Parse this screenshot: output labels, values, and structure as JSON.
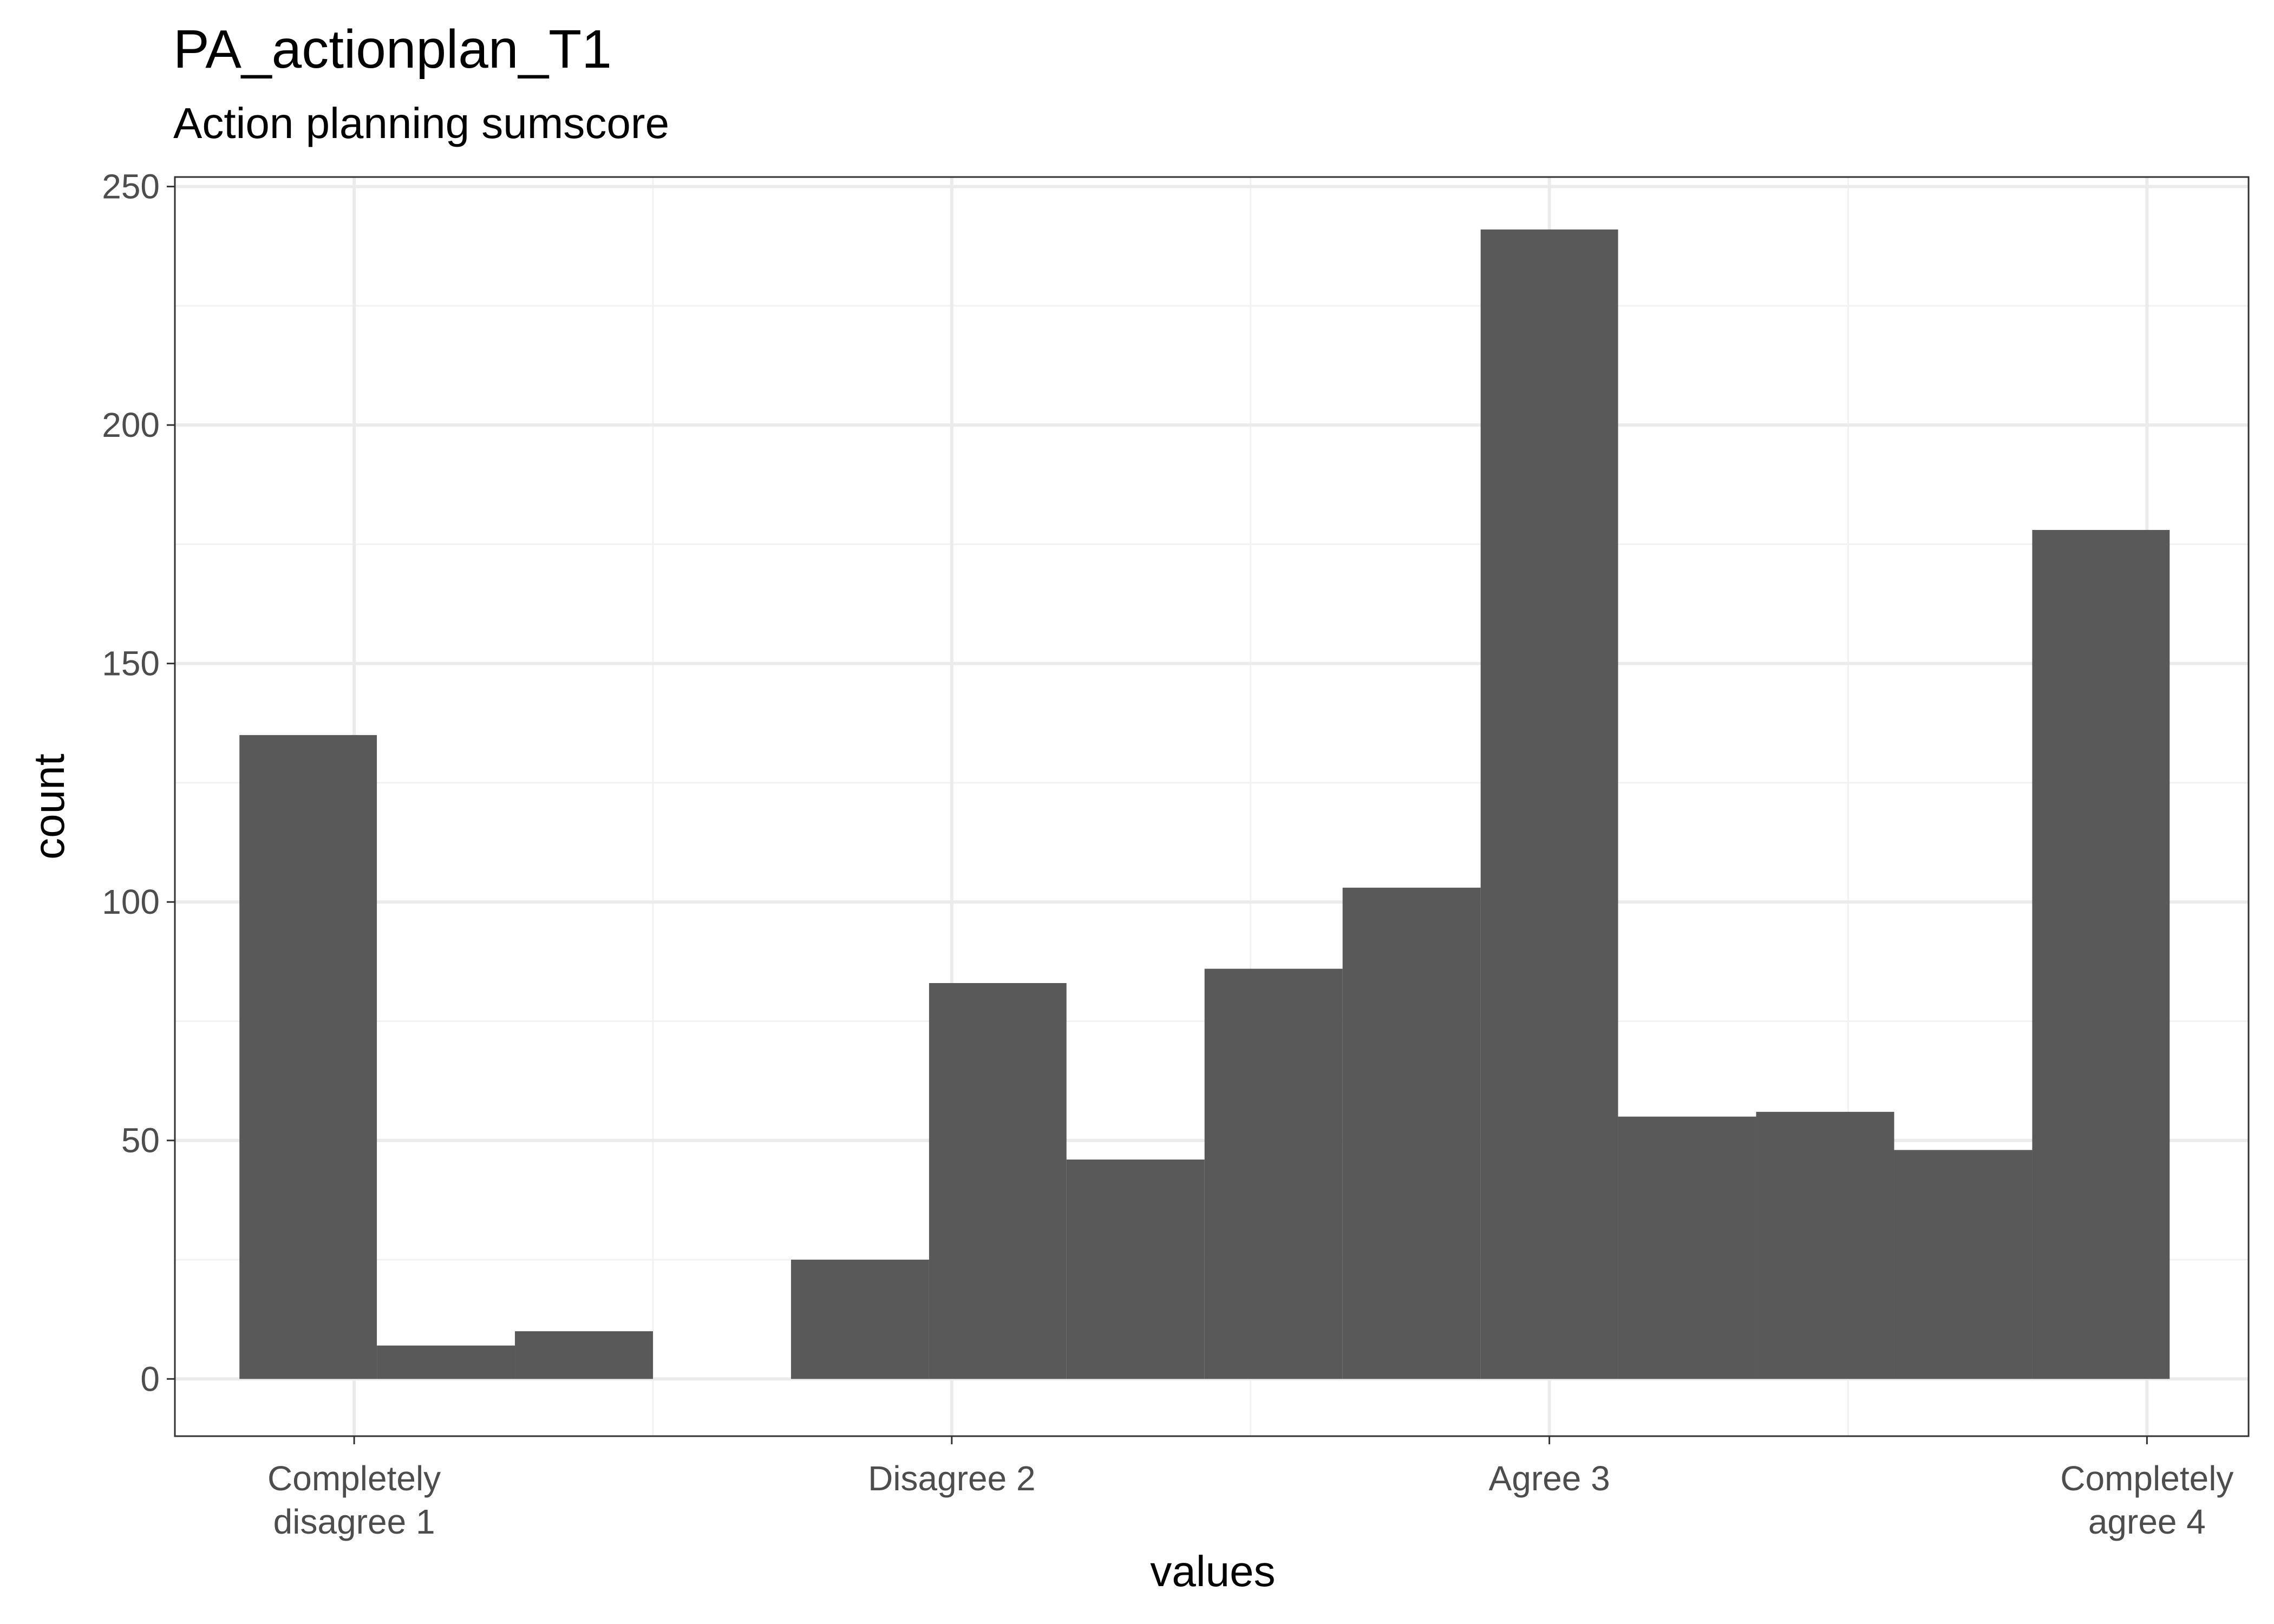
{
  "chart_data": {
    "type": "bar",
    "title": "PA_actionplan_T1",
    "subtitle": "Action planning sumscore",
    "xlabel": "values",
    "ylabel": "count",
    "xlim": [
      0.7,
      4.17
    ],
    "ylim": [
      -12,
      252
    ],
    "y_ticks": [
      0,
      50,
      100,
      150,
      200,
      250
    ],
    "x_ticks": [
      {
        "value": 1,
        "label": [
          "Completely",
          "disagree 1"
        ]
      },
      {
        "value": 2,
        "label": [
          "Disagree 2"
        ]
      },
      {
        "value": 3,
        "label": [
          "Agree 3"
        ]
      },
      {
        "value": 4,
        "label": [
          "Completely",
          "agree 4"
        ]
      }
    ],
    "bin_width": 0.2308,
    "bins": [
      {
        "x0": 0.808,
        "x1": 1.038,
        "count": 135
      },
      {
        "x0": 1.038,
        "x1": 1.269,
        "count": 7
      },
      {
        "x0": 1.269,
        "x1": 1.5,
        "count": 10
      },
      {
        "x0": 1.5,
        "x1": 1.731,
        "count": 0
      },
      {
        "x0": 1.731,
        "x1": 1.962,
        "count": 25
      },
      {
        "x0": 1.962,
        "x1": 2.192,
        "count": 83
      },
      {
        "x0": 2.192,
        "x1": 2.423,
        "count": 46
      },
      {
        "x0": 2.423,
        "x1": 2.654,
        "count": 86
      },
      {
        "x0": 2.654,
        "x1": 2.885,
        "count": 103
      },
      {
        "x0": 2.885,
        "x1": 3.115,
        "count": 241
      },
      {
        "x0": 3.115,
        "x1": 3.346,
        "count": 55
      },
      {
        "x0": 3.346,
        "x1": 3.577,
        "count": 56
      },
      {
        "x0": 3.577,
        "x1": 3.808,
        "count": 48
      },
      {
        "x0": 3.808,
        "x1": 4.038,
        "count": 178
      }
    ],
    "grid": true,
    "bar_color": "#595959",
    "grid_major_color": "#ebebeb",
    "grid_minor_color": "#f2f2f2",
    "panel_border_color": "#333333"
  }
}
